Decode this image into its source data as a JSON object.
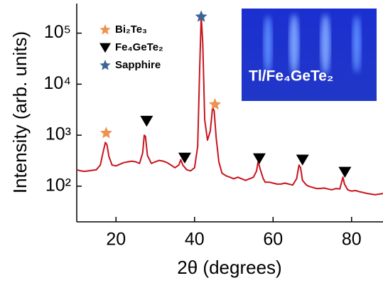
{
  "chart_data": {
    "type": "line",
    "log_y": true,
    "xlabel": "2θ (degrees)",
    "ylabel": "Intensity (arb. units)",
    "xlim": [
      10,
      88
    ],
    "xticks": [
      20,
      40,
      60,
      80
    ],
    "ylim": [
      20,
      380000
    ],
    "yticks": [
      {
        "value": 100,
        "label": "10²"
      },
      {
        "value": 1000,
        "label": "10³"
      },
      {
        "value": 10000,
        "label": "10⁴"
      },
      {
        "value": 100000,
        "label": "10⁵"
      }
    ],
    "line": {
      "color": "#c8141c",
      "x": [
        10,
        11,
        12,
        13,
        14,
        15,
        16,
        16.8,
        17.3,
        17.7,
        18.2,
        19,
        20,
        21,
        22,
        23,
        24,
        25,
        26,
        26.8,
        27.2,
        27.5,
        28,
        29,
        30,
        31,
        32,
        33,
        34,
        35,
        36,
        36.5,
        37,
        38,
        39,
        40,
        40.8,
        41.3,
        41.7,
        42.1,
        42.6,
        43.3,
        44,
        44.6,
        45,
        45.5,
        46.2,
        47,
        48,
        49,
        50,
        51,
        52,
        53,
        54,
        55,
        55.8,
        56.2,
        56.7,
        57.5,
        58,
        59,
        60,
        61,
        62,
        63,
        64,
        65,
        66,
        66.6,
        67,
        67.5,
        68.5,
        69,
        70,
        71,
        72,
        73,
        74,
        75,
        76,
        77,
        77.8,
        78.2,
        79,
        80,
        81,
        82,
        83,
        84,
        85,
        86,
        87,
        88
      ],
      "values": [
        210,
        200,
        195,
        200,
        205,
        210,
        260,
        500,
        720,
        650,
        380,
        260,
        250,
        270,
        290,
        300,
        310,
        300,
        280,
        450,
        1000,
        950,
        400,
        280,
        300,
        320,
        310,
        290,
        260,
        230,
        260,
        330,
        260,
        210,
        200,
        230,
        600,
        20000,
        220000,
        60000,
        2000,
        800,
        1200,
        3500,
        3000,
        900,
        300,
        180,
        160,
        150,
        140,
        150,
        140,
        130,
        140,
        150,
        200,
        310,
        220,
        140,
        120,
        120,
        115,
        110,
        110,
        115,
        110,
        105,
        140,
        260,
        230,
        130,
        105,
        100,
        95,
        90,
        90,
        92,
        88,
        85,
        90,
        88,
        150,
        110,
        85,
        80,
        82,
        78,
        75,
        72,
        70,
        68,
        70,
        72
      ]
    },
    "series": [
      {
        "name": "Bi₂Te₃",
        "color": "#ec9350",
        "symbol": "star",
        "x": [
          17.5,
          45.2
        ],
        "values": [
          1100,
          4000
        ]
      },
      {
        "name": "Fe₄GeTe₂",
        "color": "#000000",
        "symbol": "triangle-down",
        "x": [
          27.8,
          37.5,
          56.5,
          67.5,
          78.3
        ],
        "values": [
          1900,
          360,
          350,
          330,
          190
        ]
      },
      {
        "name": "Sapphire",
        "color": "#3d6494",
        "symbol": "star",
        "x": [
          41.7
        ],
        "values": [
          210000
        ]
      }
    ],
    "inset_label": "Tl/Fe₄GeTe₂"
  }
}
